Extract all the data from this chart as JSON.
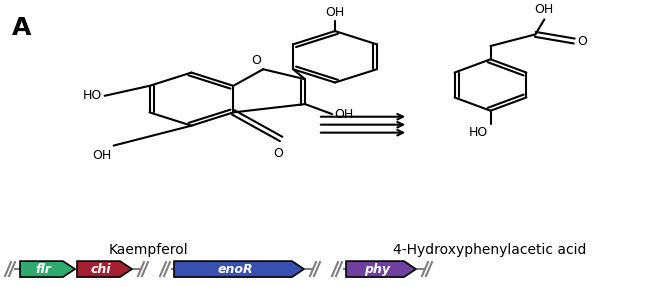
{
  "panel_label": "A",
  "kaempferol_label": "Kaempferol",
  "product_label": "4-Hydroxyphenylacetic acid",
  "background_color": "#ffffff",
  "gene_colors": {
    "flr": "#2eaa6e",
    "chi": "#a52030",
    "enoR": "#3a50b0",
    "phy": "#7040a0"
  },
  "gene_labels": [
    "flr",
    "chi",
    "enoR",
    "phy"
  ],
  "arrow_color": "#808080",
  "line_color": "#808080",
  "text_color": "#000000"
}
